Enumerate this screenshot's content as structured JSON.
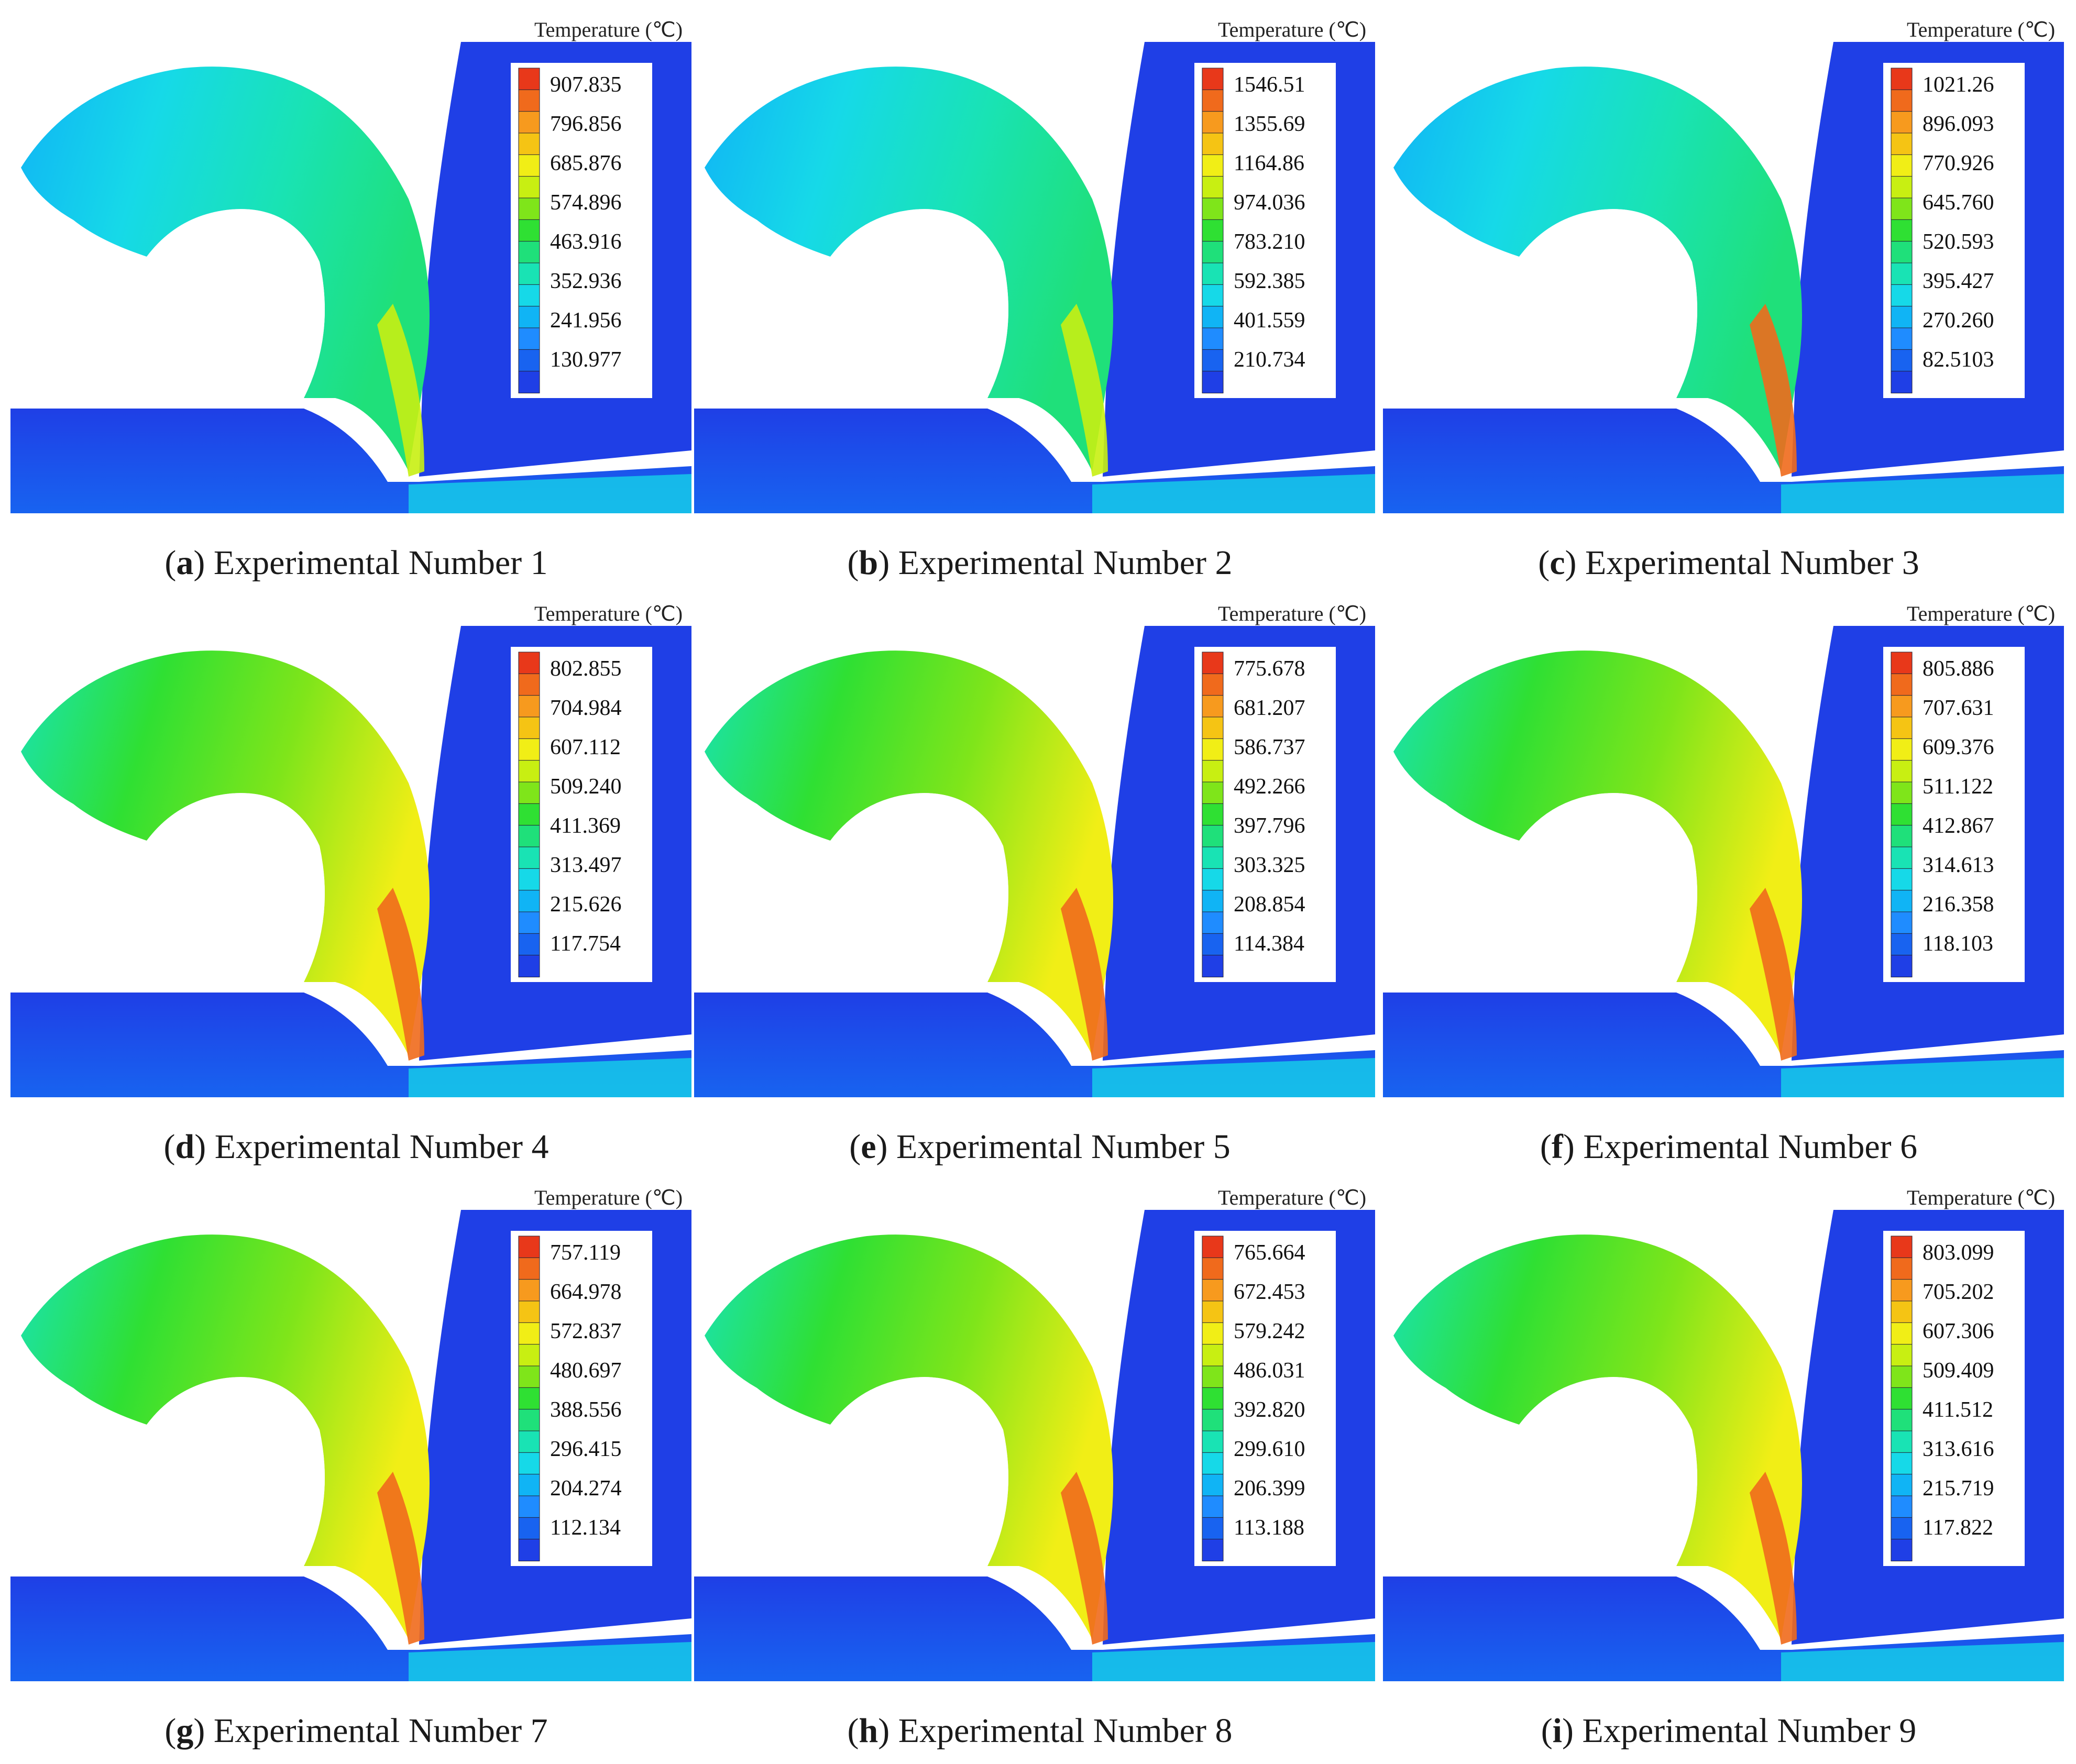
{
  "figure": {
    "legend_title": "Temperature (℃)",
    "palette": [
      "#1f3fe6",
      "#1863f0",
      "#1f8cff",
      "#10b4f5",
      "#16d9e8",
      "#19e3b4",
      "#1fe07a",
      "#2fe033",
      "#7fe51a",
      "#c8ef12",
      "#f1ee16",
      "#f5c414",
      "#f79a1e",
      "#f06a1c",
      "#e8381a"
    ],
    "panels": [
      {
        "letter": "a",
        "title": "Experimental Number 1",
        "values": [
          "907.835",
          "796.856",
          "685.876",
          "574.896",
          "463.916",
          "352.936",
          "241.956",
          "130.977"
        ]
      },
      {
        "letter": "b",
        "title": "Experimental Number 2",
        "values": [
          "1546.51",
          "1355.69",
          "1164.86",
          "974.036",
          "783.210",
          "592.385",
          "401.559",
          "210.734"
        ]
      },
      {
        "letter": "c",
        "title": "Experimental Number 3",
        "values": [
          "1021.26",
          "896.093",
          "770.926",
          "645.760",
          "520.593",
          "395.427",
          "270.260",
          "82.5103"
        ]
      },
      {
        "letter": "d",
        "title": "Experimental Number 4",
        "values": [
          "802.855",
          "704.984",
          "607.112",
          "509.240",
          "411.369",
          "313.497",
          "215.626",
          "117.754"
        ]
      },
      {
        "letter": "e",
        "title": "Experimental Number 5",
        "values": [
          "775.678",
          "681.207",
          "586.737",
          "492.266",
          "397.796",
          "303.325",
          "208.854",
          "114.384"
        ]
      },
      {
        "letter": "f",
        "title": "Experimental Number 6",
        "values": [
          "805.886",
          "707.631",
          "609.376",
          "511.122",
          "412.867",
          "314.613",
          "216.358",
          "118.103"
        ]
      },
      {
        "letter": "g",
        "title": "Experimental Number 7",
        "values": [
          "757.119",
          "664.978",
          "572.837",
          "480.697",
          "388.556",
          "296.415",
          "204.274",
          "112.134"
        ]
      },
      {
        "letter": "h",
        "title": "Experimental Number 8",
        "values": [
          "765.664",
          "672.453",
          "579.242",
          "486.031",
          "392.820",
          "299.610",
          "206.399",
          "113.188"
        ]
      },
      {
        "letter": "i",
        "title": "Experimental Number 9",
        "values": [
          "803.099",
          "705.202",
          "607.306",
          "509.409",
          "411.512",
          "313.616",
          "215.719",
          "117.822"
        ]
      }
    ]
  }
}
